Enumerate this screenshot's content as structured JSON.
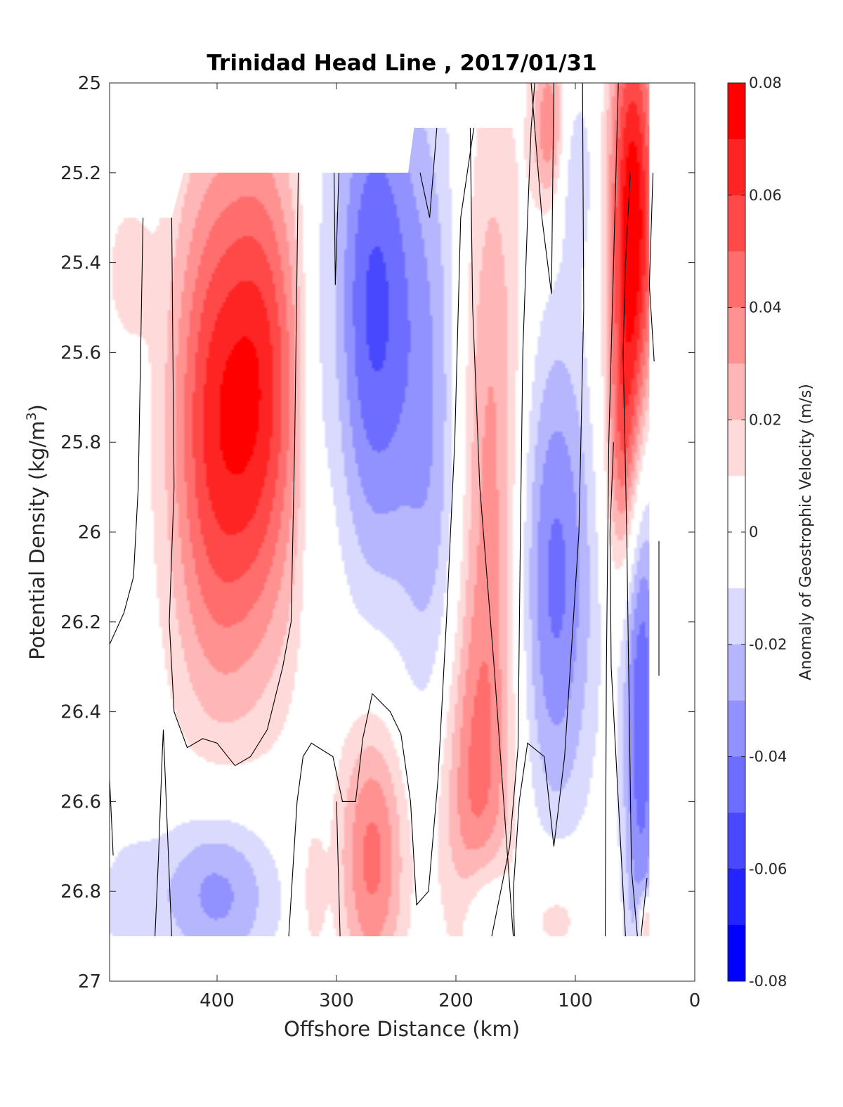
{
  "chart_data": {
    "type": "heatmap",
    "title": "Trinidad Head Line , 2017/01/31",
    "xlabel": "Offshore Distance (km)",
    "ylabel": "Potential Density (kg/m",
    "ylabel_sup": "3",
    "ylabel_end": ")",
    "xlim": [
      490,
      0
    ],
    "ylim": [
      25,
      27
    ],
    "x_reversed": true,
    "y_reversed": true,
    "xticks": [
      400,
      300,
      200,
      100,
      0
    ],
    "xtick_labels": [
      "400",
      "300",
      "200",
      "100",
      "0"
    ],
    "yticks": [
      25,
      25.2,
      25.4,
      25.6,
      25.8,
      26,
      26.2,
      26.4,
      26.6,
      26.8,
      27
    ],
    "ytick_labels": [
      "25",
      "25.2",
      "25.4",
      "25.6",
      "25.8",
      "26",
      "26.2",
      "26.4",
      "26.6",
      "26.8",
      "27"
    ],
    "colorbar": {
      "label": "Anomaly of Geostrophic Velocity (m/s)",
      "range": [
        -0.08,
        0.08
      ],
      "ticks": [
        0.08,
        0.06,
        0.04,
        0.02,
        0,
        -0.02,
        -0.04,
        -0.06,
        -0.08
      ],
      "tick_labels": [
        "0.08",
        "0.06",
        "0.04",
        "0.02",
        "0",
        "-0.02",
        "-0.04",
        "-0.06",
        "-0.08"
      ],
      "levels": [
        "#ff0000",
        "#ff2424",
        "#ff4848",
        "#ff6d6d",
        "#ff9191",
        "#ffb6b6",
        "#ffdada",
        "#ffffff",
        "#ffffff",
        "#dadaff",
        "#b6b6ff",
        "#9191ff",
        "#6d6dff",
        "#4848ff",
        "#2424ff",
        "#0000ff"
      ]
    },
    "data_boundary": [
      [
        490,
        25.3
      ],
      [
        470,
        25.3
      ],
      [
        460,
        25.3
      ],
      [
        438,
        25.3
      ],
      [
        428,
        25.2
      ],
      [
        240,
        25.2
      ],
      [
        235,
        25.1
      ],
      [
        150,
        25.1
      ],
      [
        145,
        25.0
      ],
      [
        0,
        25.0
      ]
    ],
    "fields": [
      {
        "x": 475,
        "y": 25.42,
        "v": 0.015,
        "sx": 14,
        "sy": 0.12
      },
      {
        "x": 475,
        "y": 26.82,
        "v": -0.015,
        "sx": 18,
        "sy": 0.1
      },
      {
        "x": 405,
        "y": 25.72,
        "v": 0.045,
        "sx": 26,
        "sy": 0.42
      },
      {
        "x": 360,
        "y": 25.62,
        "v": 0.045,
        "sx": 24,
        "sy": 0.38
      },
      {
        "x": 382,
        "y": 25.95,
        "v": 0.018,
        "sx": 40,
        "sy": 0.42
      },
      {
        "x": 400,
        "y": 26.8,
        "v": -0.036,
        "sx": 36,
        "sy": 0.14
      },
      {
        "x": 318,
        "y": 25.7,
        "v": -0.012,
        "sx": 9,
        "sy": 0.45
      },
      {
        "x": 320,
        "y": 26.8,
        "v": 0.016,
        "sx": 8,
        "sy": 0.12
      },
      {
        "x": 270,
        "y": 25.5,
        "v": -0.05,
        "sx": 24,
        "sy": 0.42
      },
      {
        "x": 270,
        "y": 26.72,
        "v": 0.044,
        "sx": 20,
        "sy": 0.22
      },
      {
        "x": 220,
        "y": 25.55,
        "v": -0.022,
        "sx": 24,
        "sy": 0.5
      },
      {
        "x": 215,
        "y": 26.1,
        "v": -0.014,
        "sx": 20,
        "sy": 0.4
      },
      {
        "x": 172,
        "y": 25.9,
        "v": 0.038,
        "sx": 22,
        "sy": 0.6
      },
      {
        "x": 188,
        "y": 26.6,
        "v": 0.03,
        "sx": 22,
        "sy": 0.3
      },
      {
        "x": 175,
        "y": 26.85,
        "v": -0.028,
        "sx": 16,
        "sy": 0.1
      },
      {
        "x": 122,
        "y": 25.1,
        "v": 0.04,
        "sx": 10,
        "sy": 0.14
      },
      {
        "x": 118,
        "y": 26.1,
        "v": -0.044,
        "sx": 24,
        "sy": 0.4
      },
      {
        "x": 100,
        "y": 25.2,
        "v": -0.018,
        "sx": 12,
        "sy": 0.14
      },
      {
        "x": 115,
        "y": 26.85,
        "v": 0.018,
        "sx": 22,
        "sy": 0.1
      },
      {
        "x": 52,
        "y": 25.35,
        "v": 0.085,
        "sx": 14,
        "sy": 0.38
      },
      {
        "x": 60,
        "y": 25.85,
        "v": 0.03,
        "sx": 10,
        "sy": 0.2
      },
      {
        "x": 45,
        "y": 26.35,
        "v": -0.05,
        "sx": 11,
        "sy": 0.48
      },
      {
        "x": 40,
        "y": 26.88,
        "v": 0.045,
        "sx": 5,
        "sy": 0.05
      }
    ],
    "zero_contours": [
      [
        [
          490,
          26.25
        ],
        [
          478,
          26.18
        ],
        [
          470,
          26.1
        ],
        [
          466,
          25.9
        ],
        [
          462,
          25.3
        ]
      ],
      [
        [
          490,
          26.55
        ],
        [
          487,
          26.72
        ]
      ],
      [
        [
          452,
          26.9
        ],
        [
          449,
          26.72
        ],
        [
          446,
          26.5
        ],
        [
          445,
          26.44
        ],
        [
          438,
          26.9
        ]
      ],
      [
        [
          438,
          25.3
        ],
        [
          436,
          25.9
        ],
        [
          440,
          26.2
        ],
        [
          436,
          26.4
        ],
        [
          425,
          26.48
        ],
        [
          412,
          26.46
        ],
        [
          400,
          26.47
        ],
        [
          385,
          26.52
        ],
        [
          372,
          26.5
        ],
        [
          358,
          26.44
        ],
        [
          345,
          26.3
        ],
        [
          338,
          26.2
        ],
        [
          335,
          25.8
        ],
        [
          332,
          25.2
        ]
      ],
      [
        [
          340,
          26.9
        ],
        [
          333,
          26.6
        ],
        [
          328,
          26.5
        ],
        [
          321,
          26.47
        ],
        [
          303,
          26.5
        ],
        [
          295,
          26.6
        ],
        [
          284,
          26.6
        ],
        [
          278,
          26.46
        ],
        [
          270,
          26.36
        ],
        [
          255,
          26.4
        ],
        [
          246,
          26.45
        ],
        [
          238,
          26.6
        ],
        [
          233,
          26.83
        ],
        [
          223,
          26.8
        ],
        [
          215,
          26.55
        ],
        [
          208,
          26.2
        ],
        [
          201,
          25.8
        ],
        [
          196,
          25.3
        ],
        [
          185,
          25.1
        ]
      ],
      [
        [
          302,
          25.2
        ],
        [
          301,
          25.45
        ],
        [
          298,
          25.2
        ]
      ],
      [
        [
          297,
          26.9
        ],
        [
          300,
          26.6
        ]
      ],
      [
        [
          230,
          25.2
        ],
        [
          222,
          25.3
        ],
        [
          216,
          25.1
        ]
      ],
      [
        [
          152,
          26.9
        ],
        [
          160,
          26.6
        ],
        [
          168,
          26.3
        ],
        [
          180,
          25.9
        ],
        [
          186,
          25.5
        ],
        [
          188,
          25.1
        ]
      ],
      [
        [
          170,
          26.9
        ],
        [
          155,
          26.7
        ],
        [
          148,
          26.48
        ],
        [
          146,
          26.0
        ],
        [
          144,
          25.6
        ],
        [
          140,
          25.3
        ],
        [
          137,
          25.1
        ],
        [
          134,
          25.0
        ]
      ],
      [
        [
          151,
          26.9
        ],
        [
          152,
          26.8
        ],
        [
          147,
          26.6
        ],
        [
          140,
          26.47
        ],
        [
          126,
          26.5
        ],
        [
          118,
          26.7
        ],
        [
          109,
          26.5
        ],
        [
          97,
          26.0
        ],
        [
          93,
          25.5
        ],
        [
          94,
          25.0
        ]
      ],
      [
        [
          137,
          25.0
        ],
        [
          128,
          25.3
        ],
        [
          120,
          25.47
        ],
        [
          118,
          25.0
        ]
      ],
      [
        [
          75,
          26.9
        ],
        [
          74,
          26.3
        ],
        [
          72,
          25.8
        ],
        [
          68,
          25.4
        ],
        [
          64,
          25.0
        ]
      ],
      [
        [
          58,
          26.9
        ],
        [
          64,
          26.6
        ],
        [
          70,
          26.3
        ],
        [
          71,
          26.0
        ],
        [
          68,
          25.8
        ]
      ],
      [
        [
          48,
          26.9
        ],
        [
          53,
          26.75
        ],
        [
          57,
          26.0
        ],
        [
          60,
          25.6
        ],
        [
          58,
          25.4
        ],
        [
          54,
          25.2
        ]
      ],
      [
        [
          40,
          26.77
        ],
        [
          45,
          26.9
        ]
      ],
      [
        [
          35,
          25.2
        ],
        [
          38,
          25.45
        ],
        [
          34,
          25.62
        ]
      ],
      [
        [
          30,
          26.02
        ],
        [
          30,
          26.32
        ]
      ]
    ]
  }
}
